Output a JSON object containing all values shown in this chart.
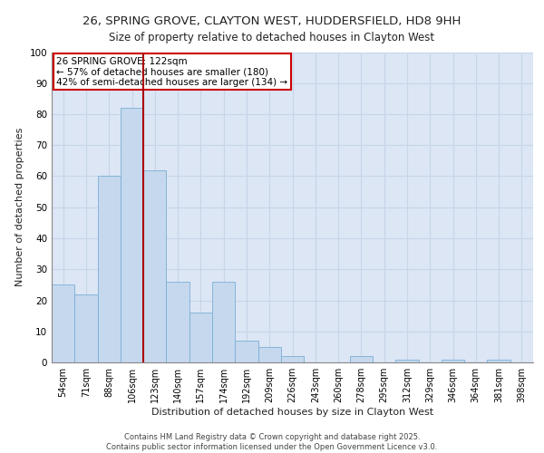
{
  "title_line1": "26, SPRING GROVE, CLAYTON WEST, HUDDERSFIELD, HD8 9HH",
  "title_line2": "Size of property relative to detached houses in Clayton West",
  "xlabel": "Distribution of detached houses by size in Clayton West",
  "ylabel": "Number of detached properties",
  "bar_labels": [
    "54sqm",
    "71sqm",
    "88sqm",
    "106sqm",
    "123sqm",
    "140sqm",
    "157sqm",
    "174sqm",
    "192sqm",
    "209sqm",
    "226sqm",
    "243sqm",
    "260sqm",
    "278sqm",
    "295sqm",
    "312sqm",
    "329sqm",
    "346sqm",
    "364sqm",
    "381sqm",
    "398sqm"
  ],
  "bar_values": [
    25,
    22,
    60,
    82,
    62,
    26,
    16,
    26,
    7,
    5,
    2,
    0,
    0,
    2,
    0,
    1,
    0,
    1,
    0,
    1,
    0
  ],
  "bar_color": "#c5d8ee",
  "bar_edge_color": "#7aafd4",
  "reference_line_x": 4.0,
  "reference_line_color": "#aa0000",
  "annotation_line1": "26 SPRING GROVE: 122sqm",
  "annotation_line2": "← 57% of detached houses are smaller (180)",
  "annotation_line3": "42% of semi-detached houses are larger (134) →",
  "annotation_box_color": "#cc0000",
  "ylim": [
    0,
    100
  ],
  "yticks": [
    0,
    10,
    20,
    30,
    40,
    50,
    60,
    70,
    80,
    90,
    100
  ],
  "grid_color": "#c8d4e8",
  "background_color": "#dce6f5",
  "footer_text": "Contains HM Land Registry data © Crown copyright and database right 2025.\nContains public sector information licensed under the Open Government Licence v3.0.",
  "title_fontsize": 9.5,
  "subtitle_fontsize": 8.5,
  "ylabel_fontsize": 8,
  "xlabel_fontsize": 8,
  "tick_fontsize": 7,
  "annotation_fontsize": 7.5
}
